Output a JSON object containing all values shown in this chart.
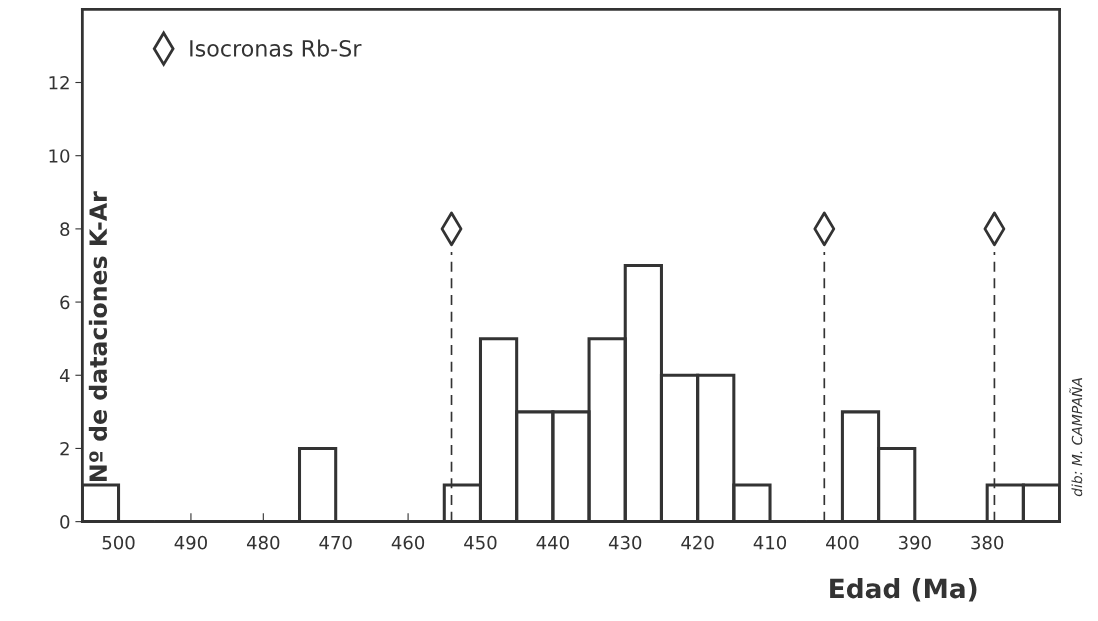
{
  "chart_data": {
    "type": "histogram",
    "bins": [
      505,
      500,
      495,
      490,
      485,
      480,
      475,
      470,
      465,
      460,
      455,
      450,
      445,
      440,
      435,
      430,
      425,
      420,
      415,
      410,
      405,
      400,
      395,
      390,
      385,
      380,
      375,
      370
    ],
    "values": [
      1,
      0,
      0,
      0,
      0,
      0,
      2,
      0,
      0,
      0,
      1,
      5,
      3,
      3,
      5,
      7,
      4,
      4,
      1,
      0,
      0,
      3,
      2,
      0,
      0,
      1,
      1
    ],
    "color": "#333333",
    "series": [
      {
        "type": "scatter",
        "name": "Isocronas Rb-Sr",
        "color": "#333333",
        "marker": "diamond",
        "x": [
          454,
          402.5,
          379
        ],
        "values": [
          8,
          8,
          8
        ]
      }
    ],
    "ref_lines": [
      {
        "axis": "x",
        "value": 454,
        "line_style": "dashed",
        "color": "#333333"
      },
      {
        "axis": "x",
        "value": 402.5,
        "line_style": "dashed",
        "color": "#333333"
      },
      {
        "axis": "x",
        "value": 379,
        "line_style": "dashed",
        "color": "#333333"
      }
    ],
    "xlabel": "Edad (Ma)",
    "ylabel": "Nº de dataciones K-Ar",
    "xlim": [
      505,
      370
    ],
    "xticks": [
      500,
      490,
      480,
      470,
      460,
      450,
      440,
      430,
      420,
      410,
      400,
      390,
      380
    ],
    "ylim": [
      0,
      14
    ],
    "yticks": [
      0,
      2,
      4,
      6,
      8,
      10,
      12
    ],
    "legend": "top left",
    "grid": false,
    "annotations": [
      "dib: M. CAMPAÑA"
    ]
  }
}
